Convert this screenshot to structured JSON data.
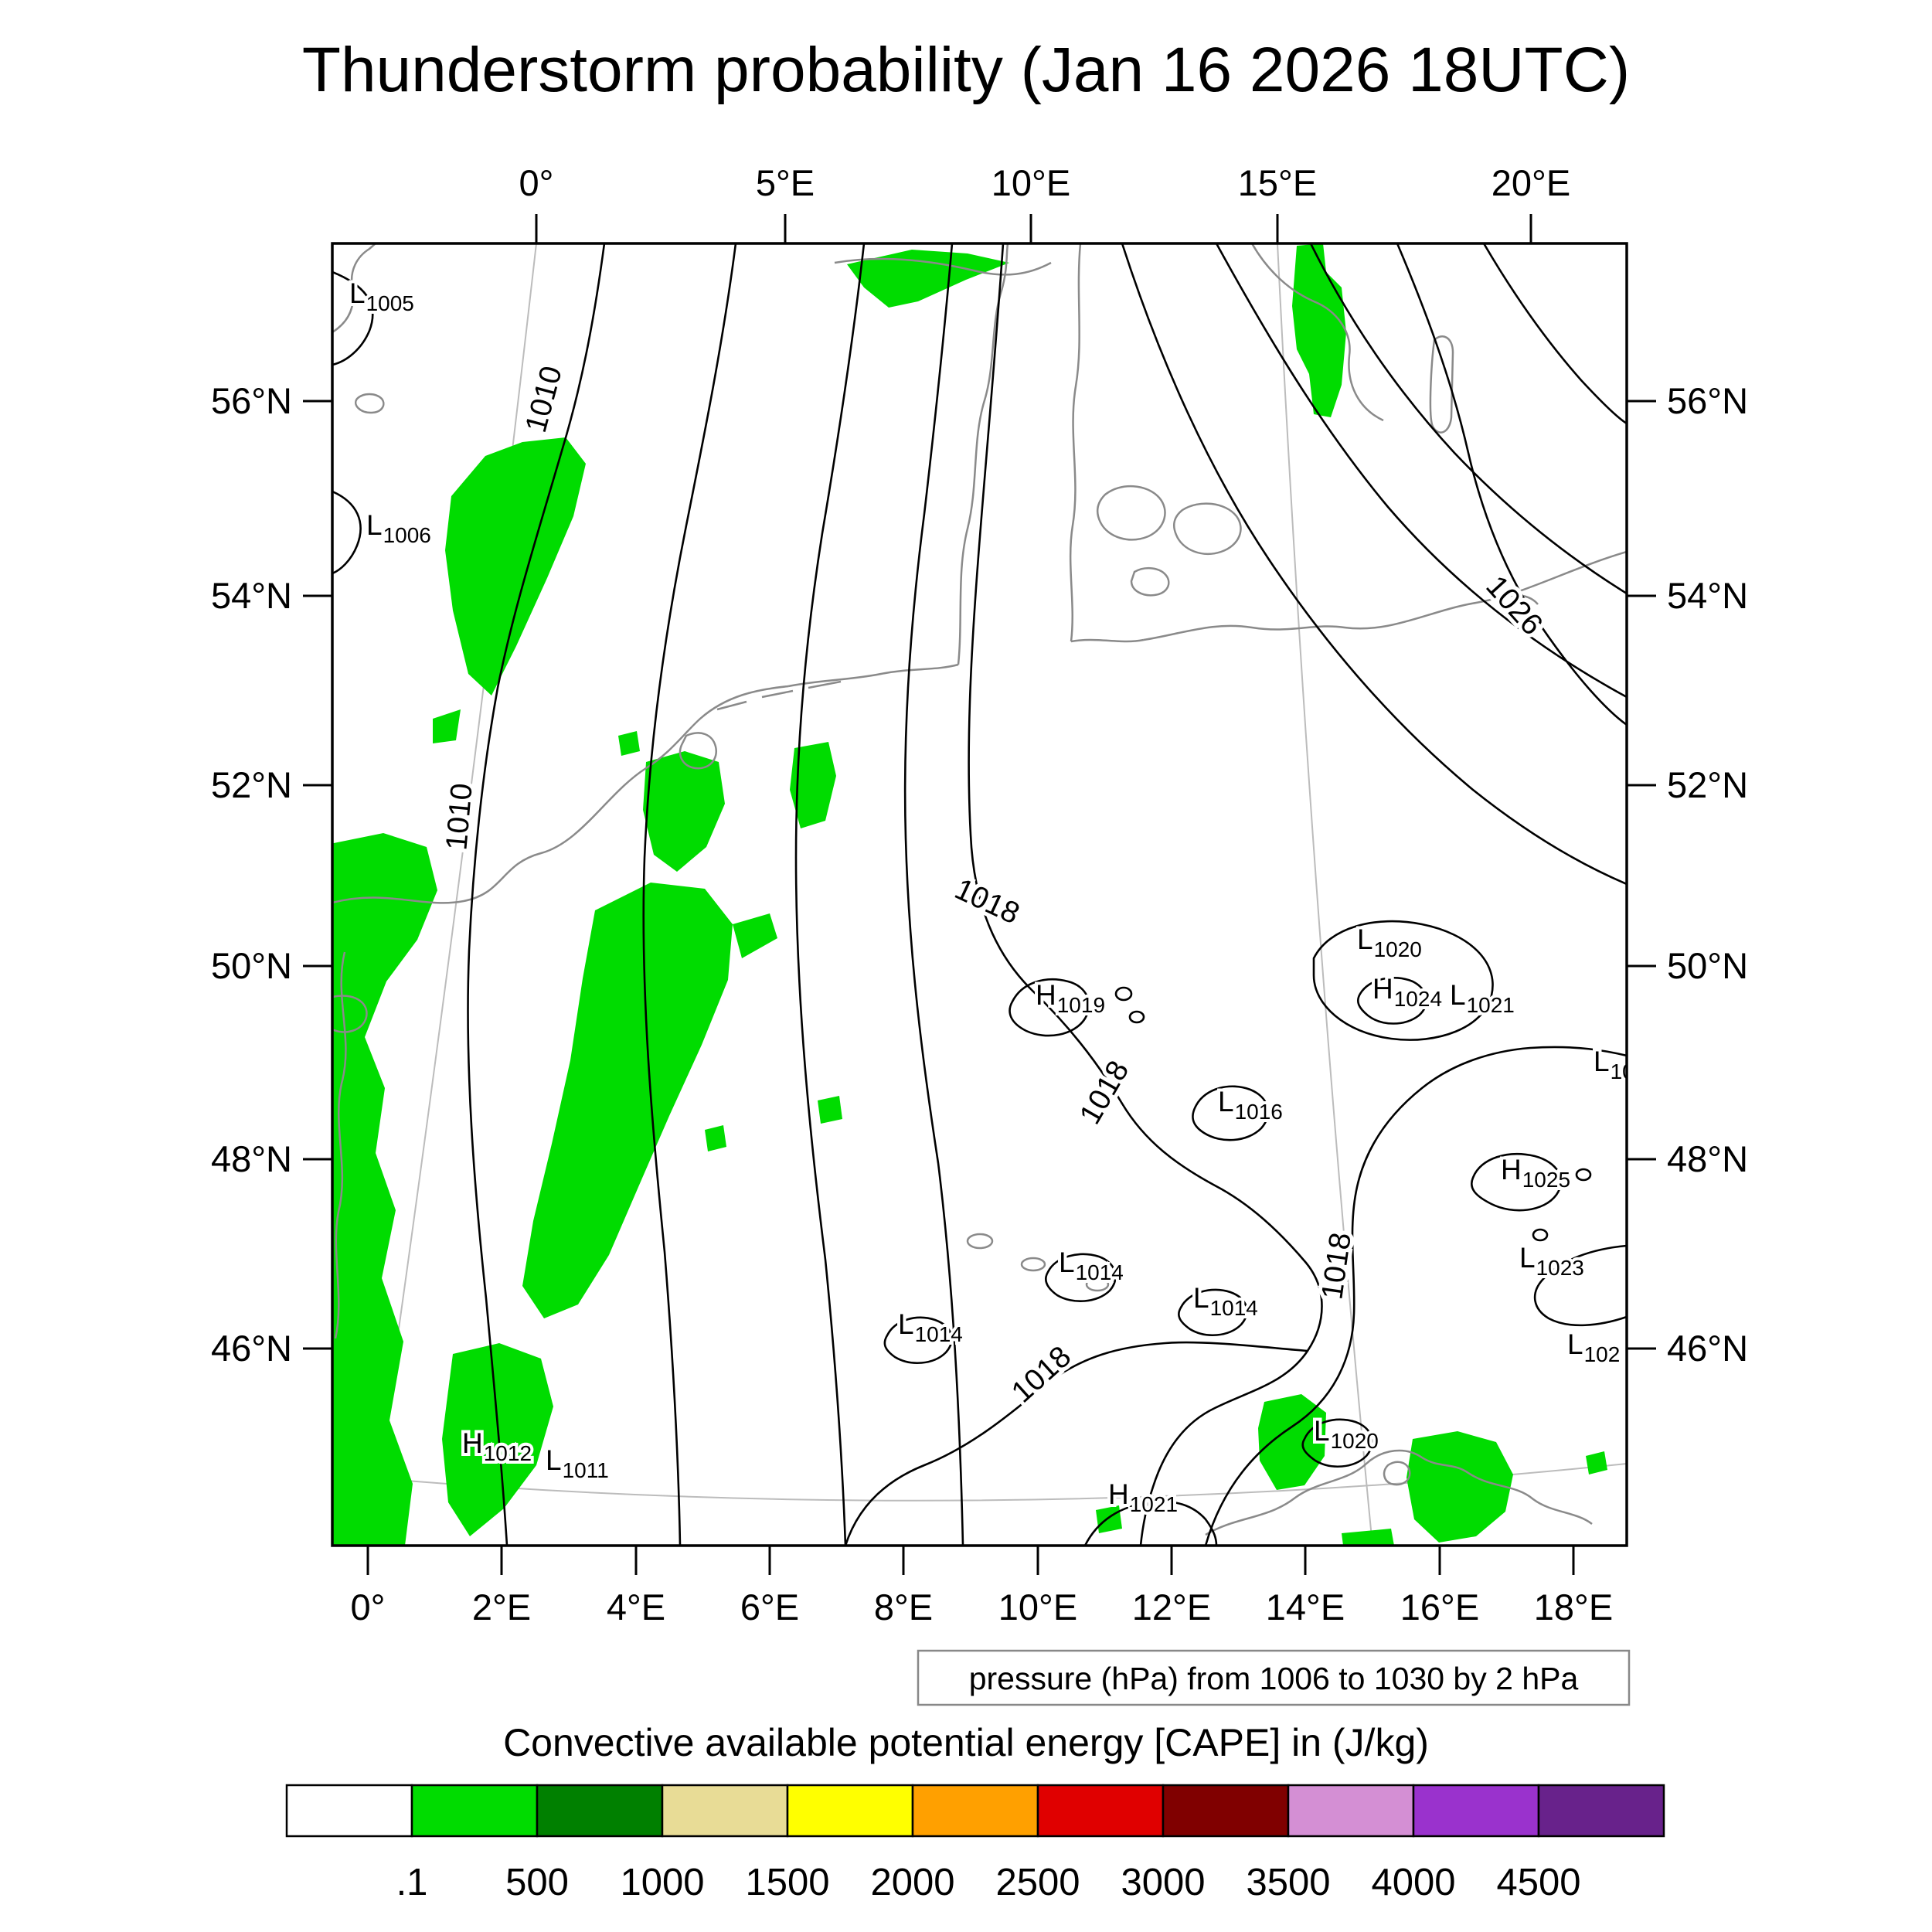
{
  "title": "Thunderstorm probability (Jan 16 2026 18UTC)",
  "axes": {
    "top": [
      "0°",
      "5°E",
      "10°E",
      "15°E",
      "20°E"
    ],
    "bottom": [
      "0°",
      "2°E",
      "4°E",
      "6°E",
      "8°E",
      "10°E",
      "12°E",
      "14°E",
      "16°E",
      "18°E"
    ],
    "left": [
      "56°N",
      "54°N",
      "52°N",
      "50°N",
      "48°N",
      "46°N"
    ],
    "right": [
      "56°N",
      "54°N",
      "52°N",
      "50°N",
      "48°N",
      "46°N"
    ]
  },
  "pressure_caption": "pressure (hPa) from 1006 to 1030 by 2 hPa",
  "pressure_centers": [
    {
      "letter": "L",
      "value": "1005"
    },
    {
      "letter": "L",
      "value": "1006"
    },
    {
      "letter": "L",
      "value": "1020"
    },
    {
      "letter": "H",
      "value": "1019"
    },
    {
      "letter": "H",
      "value": "1024"
    },
    {
      "letter": "L",
      "value": "1021"
    },
    {
      "letter": "L",
      "value": "10"
    },
    {
      "letter": "L",
      "value": "1016"
    },
    {
      "letter": "H",
      "value": "1025"
    },
    {
      "letter": "L",
      "value": "1023"
    },
    {
      "letter": "L",
      "value": "102"
    },
    {
      "letter": "L",
      "value": "1014"
    },
    {
      "letter": "L",
      "value": "1014"
    },
    {
      "letter": "L",
      "value": "1014"
    },
    {
      "letter": "H",
      "value": "1012"
    },
    {
      "letter": "L",
      "value": "1011"
    },
    {
      "letter": "H",
      "value": "1021"
    },
    {
      "letter": "L",
      "value": "1020"
    }
  ],
  "contour_labels": [
    "1010",
    "1010",
    "1018",
    "1018",
    "1018",
    "1018",
    "1026"
  ],
  "colorbar": {
    "title": "Convective available potential energy [CAPE] in (J/kg)",
    "tick_labels": [
      ".1",
      "500",
      "1000",
      "1500",
      "2000",
      "2500",
      "3000",
      "3500",
      "4000",
      "4500"
    ],
    "colors": [
      "#ffffff",
      "#00dc00",
      "#008000",
      "#e8dc96",
      "#ffff00",
      "#ffa000",
      "#e00000",
      "#800000",
      "#d48fd4",
      "#9a32cd",
      "#68228b"
    ]
  },
  "map_colors": {
    "cape_fill": "#00dc00",
    "coastline": "#8a8a8a",
    "isobar": "#000000",
    "graticule": "#bcbcbc"
  }
}
